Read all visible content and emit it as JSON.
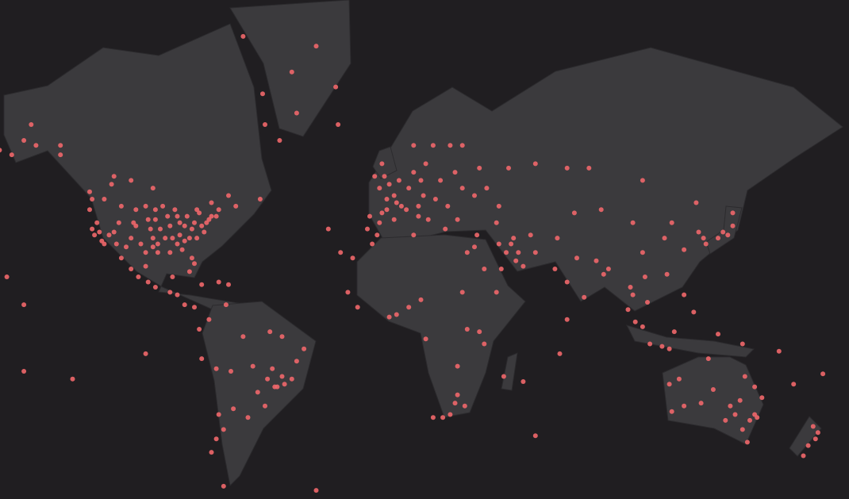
{
  "map": {
    "projection": "mercator",
    "colors": {
      "background": "#201e21",
      "land": "#3b3a3d",
      "point": "#f0676a"
    },
    "points_lonlat": [
      [
        -122,
        47
      ],
      [
        -122,
        38
      ],
      [
        -118,
        34
      ],
      [
        -117,
        33
      ],
      [
        -112,
        33
      ],
      [
        -111,
        40
      ],
      [
        -105,
        40
      ],
      [
        -104,
        39
      ],
      [
        -97,
        32
      ],
      [
        -95,
        30
      ],
      [
        -90,
        30
      ],
      [
        -84,
        34
      ],
      [
        -80,
        26
      ],
      [
        -81,
        28
      ],
      [
        -82,
        35
      ],
      [
        -77,
        39
      ],
      [
        -74,
        41
      ],
      [
        -71,
        42
      ],
      [
        -75,
        40
      ],
      [
        -87,
        42
      ],
      [
        -83,
        42
      ],
      [
        -93,
        45
      ],
      [
        -96,
        41
      ],
      [
        -90,
        39
      ],
      [
        -86,
        36
      ],
      [
        -97,
        35
      ],
      [
        -106,
        35
      ],
      [
        -115,
        36
      ],
      [
        -120,
        40
      ],
      [
        -100,
        45
      ],
      [
        -110,
        45
      ],
      [
        -117,
        47
      ],
      [
        -88,
        44
      ],
      [
        -80,
        40
      ],
      [
        -78,
        43
      ],
      [
        -70,
        44
      ],
      [
        -84,
        39
      ],
      [
        -92,
        35
      ],
      [
        -98,
        38
      ],
      [
        -102,
        33
      ],
      [
        -108,
        32
      ],
      [
        -123,
        44
      ],
      [
        -119,
        37
      ],
      [
        -76,
        37
      ],
      [
        -79,
        35
      ],
      [
        -85,
        31
      ],
      [
        -94,
        38
      ],
      [
        -89,
        35
      ],
      [
        -73,
        42
      ],
      [
        -100,
        30
      ],
      [
        -95,
        33
      ],
      [
        -91,
        42
      ],
      [
        -81,
        38
      ],
      [
        -86,
        40
      ],
      [
        -96,
        44
      ],
      [
        -104,
        44
      ],
      [
        -113,
        37
      ],
      [
        -121,
        36
      ],
      [
        -99,
        41
      ],
      [
        -87,
        33
      ],
      [
        -150,
        61
      ],
      [
        -147,
        64
      ],
      [
        -135,
        58
      ],
      [
        -165,
        64
      ],
      [
        -160,
        59
      ],
      [
        -123,
        49
      ],
      [
        -114,
        51
      ],
      [
        -113,
        53
      ],
      [
        -97,
        50
      ],
      [
        -79,
        44
      ],
      [
        -73,
        46
      ],
      [
        -63,
        45
      ],
      [
        -106,
        52
      ],
      [
        -135,
        60
      ],
      [
        -66,
        48
      ],
      [
        -53,
        47
      ],
      [
        -170,
        55
      ],
      [
        -155,
        58
      ],
      [
        -145,
        60
      ],
      [
        -99,
        19
      ],
      [
        -103,
        21
      ],
      [
        -100,
        25
      ],
      [
        -110,
        28
      ],
      [
        -90,
        15
      ],
      [
        -87,
        14
      ],
      [
        -84,
        10
      ],
      [
        -80,
        9
      ],
      [
        -77,
        18
      ],
      [
        -66,
        18
      ],
      [
        -70,
        19
      ],
      [
        -82,
        23
      ],
      [
        -89,
        21
      ],
      [
        -96,
        17
      ],
      [
        -106,
        24
      ],
      [
        -74,
        4
      ],
      [
        -67,
        10
      ],
      [
        -78,
        0
      ],
      [
        -77,
        -12
      ],
      [
        -71,
        -16
      ],
      [
        -70,
        -33
      ],
      [
        -58,
        -34
      ],
      [
        -47,
        -23
      ],
      [
        -43,
        -22
      ],
      [
        -46,
        -23
      ],
      [
        -38,
        -13
      ],
      [
        -35,
        -8
      ],
      [
        -48,
        -16
      ],
      [
        -60,
        -3
      ],
      [
        -49,
        -1
      ],
      [
        -56,
        -15
      ],
      [
        -54,
        -25
      ],
      [
        -64,
        -31
      ],
      [
        -68,
        -38
      ],
      [
        -71,
        -41
      ],
      [
        -68,
        -54
      ],
      [
        -51,
        -30
      ],
      [
        -40,
        -20
      ],
      [
        -44,
        -3
      ],
      [
        -65,
        -17
      ],
      [
        -73,
        -45
      ],
      [
        -44,
        -19
      ],
      [
        -50,
        -20
      ],
      [
        -51,
        64
      ],
      [
        -45,
        61
      ],
      [
        -52,
        69
      ],
      [
        -22,
        70
      ],
      [
        -38,
        66
      ],
      [
        -30,
        75
      ],
      [
        -60,
        76
      ],
      [
        -40,
        72
      ],
      [
        -9,
        38
      ],
      [
        -4,
        40
      ],
      [
        -3,
        43
      ],
      [
        2,
        41
      ],
      [
        2,
        48
      ],
      [
        -1,
        47
      ],
      [
        5,
        45
      ],
      [
        0,
        51
      ],
      [
        -2,
        53
      ],
      [
        -3,
        56
      ],
      [
        -6,
        53
      ],
      [
        4,
        52
      ],
      [
        8,
        50
      ],
      [
        13,
        52
      ],
      [
        10,
        54
      ],
      [
        12,
        45
      ],
      [
        12,
        42
      ],
      [
        16,
        41
      ],
      [
        14,
        48
      ],
      [
        19,
        47
      ],
      [
        21,
        52
      ],
      [
        24,
        45
      ],
      [
        23,
        38
      ],
      [
        28,
        41
      ],
      [
        18,
        60
      ],
      [
        10,
        60
      ],
      [
        25,
        60
      ],
      [
        30,
        60
      ],
      [
        37,
        55
      ],
      [
        30,
        50
      ],
      [
        35,
        48
      ],
      [
        44,
        40
      ],
      [
        49,
        55
      ],
      [
        60,
        56
      ],
      [
        -21,
        64
      ],
      [
        -5,
        36
      ],
      [
        7,
        44
      ],
      [
        15,
        56
      ],
      [
        27,
        54
      ],
      [
        -8,
        42
      ],
      [
        -1,
        44
      ],
      [
        3,
        46
      ],
      [
        -4,
        50
      ],
      [
        40,
        50
      ],
      [
        45,
        45
      ],
      [
        35,
        32
      ],
      [
        39,
        24
      ],
      [
        46,
        24
      ],
      [
        51,
        35
      ],
      [
        53,
        30
      ],
      [
        58,
        36
      ],
      [
        45,
        33
      ],
      [
        55,
        25
      ],
      [
        32,
        30
      ],
      [
        36,
        36
      ],
      [
        48,
        30
      ],
      [
        60,
        30
      ],
      [
        69,
        35
      ],
      [
        44,
        15
      ],
      [
        50,
        33
      ],
      [
        52,
        27
      ],
      [
        3,
        6
      ],
      [
        -17,
        15
      ],
      [
        -7,
        33
      ],
      [
        10,
        36
      ],
      [
        32,
        0
      ],
      [
        37,
        -1
      ],
      [
        39,
        -6
      ],
      [
        28,
        -26
      ],
      [
        18,
        -34
      ],
      [
        31,
        -30
      ],
      [
        25,
        -33
      ],
      [
        28,
        -15
      ],
      [
        47,
        -19
      ],
      [
        0,
        5
      ],
      [
        15,
        -4
      ],
      [
        13,
        12
      ],
      [
        -13,
        9
      ],
      [
        8,
        9
      ],
      [
        30,
        15
      ],
      [
        27,
        -29
      ],
      [
        22,
        -34
      ],
      [
        77,
        28
      ],
      [
        73,
        19
      ],
      [
        80,
        13
      ],
      [
        88,
        22
      ],
      [
        90,
        24
      ],
      [
        100,
        14
      ],
      [
        101,
        3
      ],
      [
        104,
        1
      ],
      [
        105,
        21
      ],
      [
        106,
        11
      ],
      [
        121,
        14
      ],
      [
        114,
        22
      ],
      [
        121,
        31
      ],
      [
        116,
        40
      ],
      [
        104,
        30
      ],
      [
        113,
        35
      ],
      [
        127,
        37
      ],
      [
        129,
        35
      ],
      [
        135,
        35
      ],
      [
        139,
        36
      ],
      [
        141,
        39
      ],
      [
        141,
        43
      ],
      [
        130,
        33
      ],
      [
        126,
        46
      ],
      [
        100,
        40
      ],
      [
        87,
        44
      ],
      [
        76,
        43
      ],
      [
        82,
        55
      ],
      [
        104,
        52
      ],
      [
        73,
        55
      ],
      [
        68,
        24
      ],
      [
        85,
        27
      ],
      [
        99,
        17
      ],
      [
        98,
        8
      ],
      [
        137,
        37
      ],
      [
        107,
        -6
      ],
      [
        112,
        -7
      ],
      [
        115,
        -8
      ],
      [
        117,
        -1
      ],
      [
        125,
        7
      ],
      [
        145,
        -6
      ],
      [
        166,
        -22
      ],
      [
        178,
        -18
      ],
      [
        -157,
        21
      ],
      [
        -170,
        -14
      ],
      [
        -150,
        -17
      ],
      [
        160,
        -9
      ],
      [
        135,
        -2
      ],
      [
        151,
        -34
      ],
      [
        150,
        -33
      ],
      [
        153,
        -27
      ],
      [
        145,
        -38
      ],
      [
        138,
        -35
      ],
      [
        116,
        -32
      ],
      [
        115,
        -22
      ],
      [
        131,
        -12
      ],
      [
        146,
        -19
      ],
      [
        147,
        -42
      ],
      [
        133,
        -24
      ],
      [
        148,
        -35
      ],
      [
        150,
        -23
      ],
      [
        121,
        -30
      ],
      [
        128,
        -29
      ],
      [
        140,
        -30
      ],
      [
        142,
        -33
      ],
      [
        119,
        -20
      ],
      [
        144,
        -28
      ],
      [
        174,
        -37
      ],
      [
        175,
        -41
      ],
      [
        172,
        -43
      ],
      [
        170,
        -46
      ],
      [
        176,
        -39
      ],
      [
        -30,
        -55
      ],
      [
        -100,
        -10
      ],
      [
        -130,
        -20
      ],
      [
        -170,
        -30
      ],
      [
        -150,
        10
      ],
      [
        60,
        -40
      ],
      [
        70,
        -10
      ],
      [
        -20,
        30
      ],
      [
        -25,
        38
      ],
      [
        -15,
        28
      ],
      [
        55,
        -21
      ],
      [
        73,
        4
      ]
    ]
  }
}
